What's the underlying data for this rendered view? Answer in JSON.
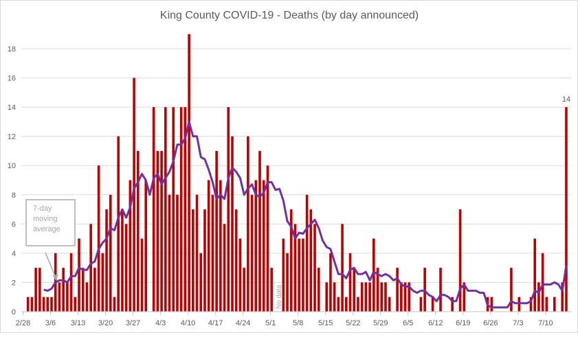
{
  "chart_data": {
    "type": "bar",
    "title": "King County COVID-19 - Deaths (by day announced)",
    "xlabel": "",
    "ylabel": "",
    "ylim": [
      0,
      20
    ],
    "yticks": [
      0,
      2,
      4,
      6,
      8,
      10,
      12,
      14,
      16,
      18
    ],
    "grid": true,
    "start_date": "2/28",
    "xtick_labels": [
      "2/28",
      "3/6",
      "3/13",
      "3/20",
      "3/27",
      "4/3",
      "4/10",
      "4/17",
      "4/24",
      "5/1",
      "5/8",
      "5/15",
      "5/22",
      "5/29",
      "6/5",
      "6/12",
      "6/19",
      "6/26",
      "7/3",
      "7/10"
    ],
    "series": [
      {
        "name": "Deaths",
        "type": "bar",
        "color": "#c00000",
        "values": [
          0,
          1,
          1,
          3,
          3,
          1,
          1,
          1,
          4,
          2,
          3,
          2,
          4,
          1,
          5,
          3,
          2,
          6,
          3,
          10,
          4,
          7,
          8,
          1,
          12,
          7,
          6,
          9,
          16,
          11,
          5,
          9,
          0,
          14,
          11,
          11,
          14,
          8,
          14,
          8,
          14,
          14,
          19,
          7,
          8,
          4,
          7,
          9,
          8,
          11,
          9,
          6,
          14,
          12,
          7,
          5,
          3,
          12,
          8,
          9,
          11,
          9,
          10,
          3,
          null,
          null,
          5,
          4,
          7,
          6,
          5,
          5,
          8,
          7,
          6,
          3,
          0,
          2,
          4,
          2,
          1,
          6,
          1,
          4,
          3,
          1,
          2,
          2,
          2,
          5,
          3,
          2,
          2,
          1,
          0,
          3,
          2,
          2,
          2,
          0,
          0,
          1,
          3,
          0,
          1,
          0,
          3,
          0,
          0,
          1,
          0,
          7,
          2,
          0,
          0,
          0,
          0,
          0,
          1,
          1,
          0,
          0,
          0,
          0,
          3,
          0,
          1,
          0,
          0,
          1,
          5,
          2,
          4,
          1,
          0,
          1,
          0,
          2,
          14
        ]
      },
      {
        "name": "7-day moving average",
        "type": "line",
        "color": "#7030a0",
        "window": 7
      }
    ],
    "data_labels": [
      {
        "series": "Deaths",
        "last_point": true,
        "text": "14"
      }
    ],
    "annotations": {
      "moving_average_callout": "7-day moving average",
      "callout_lines": [
        "7-day",
        "moving",
        "average"
      ],
      "no_data": "No data"
    }
  }
}
